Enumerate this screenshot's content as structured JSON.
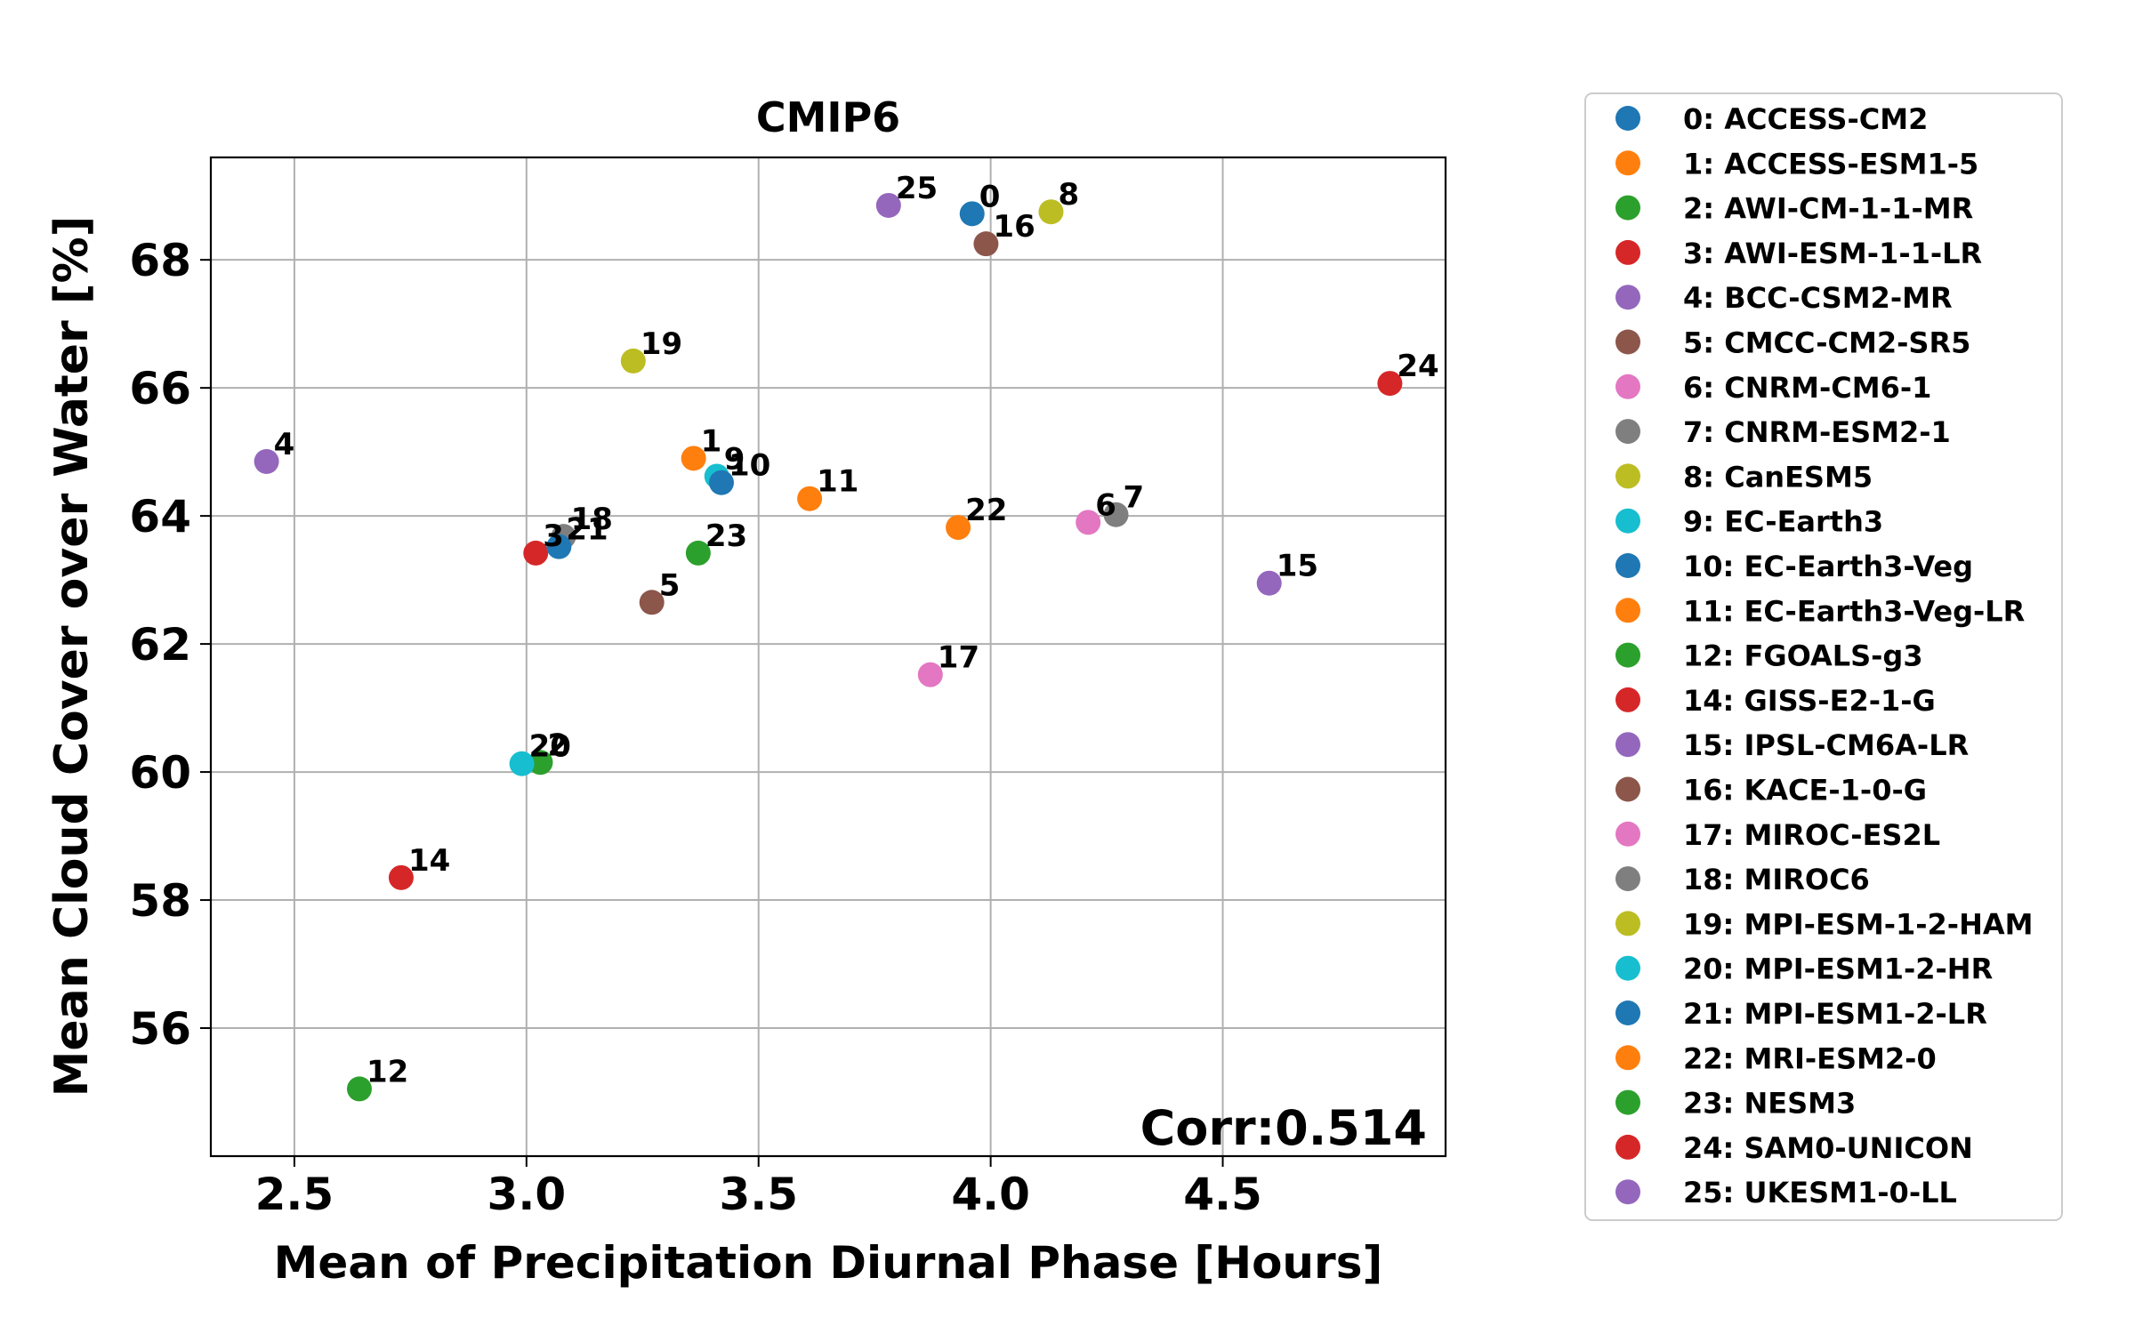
{
  "chart_data": {
    "type": "scatter",
    "title": "CMIP6",
    "xlabel": "Mean of Precipitation Diurnal Phase [Hours]",
    "ylabel": "Mean Cloud Cover over Water [%]",
    "xlim": [
      2.32,
      4.98
    ],
    "ylim": [
      54.0,
      69.6
    ],
    "xticks": [
      2.5,
      3.0,
      3.5,
      4.0,
      4.5
    ],
    "xtick_labels": [
      "2.5",
      "3.0",
      "3.5",
      "4.0",
      "4.5"
    ],
    "yticks": [
      56,
      58,
      60,
      62,
      64,
      66,
      68
    ],
    "ytick_labels": [
      "56",
      "58",
      "60",
      "62",
      "64",
      "66",
      "68"
    ],
    "grid": true,
    "legend_position": "outside-right",
    "annotation": "Corr:0.514",
    "points": [
      {
        "label": "0",
        "name": "0: ACCESS-CM2",
        "x": 3.96,
        "y": 68.72,
        "color": "#1f77b4"
      },
      {
        "label": "1",
        "name": "1: ACCESS-ESM1-5",
        "x": 3.36,
        "y": 64.9,
        "color": "#ff7f0e"
      },
      {
        "label": "2",
        "name": "2: AWI-CM-1-1-MR",
        "x": 3.03,
        "y": 60.15,
        "color": "#2ca02c"
      },
      {
        "label": "3",
        "name": "3: AWI-ESM-1-1-LR",
        "x": 3.02,
        "y": 63.42,
        "color": "#d62728"
      },
      {
        "label": "4",
        "name": "4: BCC-CSM2-MR",
        "x": 2.44,
        "y": 64.85,
        "color": "#9467bd"
      },
      {
        "label": "5",
        "name": "5: CMCC-CM2-SR5",
        "x": 3.27,
        "y": 62.65,
        "color": "#8c564b"
      },
      {
        "label": "6",
        "name": "6: CNRM-CM6-1",
        "x": 4.21,
        "y": 63.9,
        "color": "#e377c2"
      },
      {
        "label": "7",
        "name": "7: CNRM-ESM2-1",
        "x": 4.27,
        "y": 64.02,
        "color": "#7f7f7f"
      },
      {
        "label": "8",
        "name": "8: CanESM5",
        "x": 4.13,
        "y": 68.75,
        "color": "#bcbd22"
      },
      {
        "label": "9",
        "name": "9: EC-Earth3",
        "x": 3.41,
        "y": 64.62,
        "color": "#17becf"
      },
      {
        "label": "10",
        "name": "10: EC-Earth3-Veg",
        "x": 3.42,
        "y": 64.52,
        "color": "#1f77b4"
      },
      {
        "label": "11",
        "name": "11: EC-Earth3-Veg-LR",
        "x": 3.61,
        "y": 64.27,
        "color": "#ff7f0e"
      },
      {
        "label": "12",
        "name": "12: FGOALS-g3",
        "x": 2.64,
        "y": 55.05,
        "color": "#2ca02c"
      },
      {
        "label": "14",
        "name": "14: GISS-E2-1-G",
        "x": 2.73,
        "y": 58.35,
        "color": "#d62728"
      },
      {
        "label": "15",
        "name": "15: IPSL-CM6A-LR",
        "x": 4.6,
        "y": 62.95,
        "color": "#9467bd"
      },
      {
        "label": "16",
        "name": "16: KACE-1-0-G",
        "x": 3.99,
        "y": 68.25,
        "color": "#8c564b"
      },
      {
        "label": "17",
        "name": "17: MIROC-ES2L",
        "x": 3.87,
        "y": 61.52,
        "color": "#e377c2"
      },
      {
        "label": "18",
        "name": "18: MIROC6",
        "x": 3.08,
        "y": 63.68,
        "color": "#7f7f7f"
      },
      {
        "label": "19",
        "name": "19: MPI-ESM-1-2-HAM",
        "x": 3.23,
        "y": 66.42,
        "color": "#bcbd22"
      },
      {
        "label": "20",
        "name": "20: MPI-ESM1-2-HR",
        "x": 2.99,
        "y": 60.13,
        "color": "#17becf"
      },
      {
        "label": "21",
        "name": "21: MPI-ESM1-2-LR",
        "x": 3.07,
        "y": 63.52,
        "color": "#1f77b4"
      },
      {
        "label": "22",
        "name": "22: MRI-ESM2-0",
        "x": 3.93,
        "y": 63.82,
        "color": "#ff7f0e"
      },
      {
        "label": "23",
        "name": "23: NESM3",
        "x": 3.37,
        "y": 63.42,
        "color": "#2ca02c"
      },
      {
        "label": "24",
        "name": "24: SAM0-UNICON",
        "x": 4.86,
        "y": 66.07,
        "color": "#d62728"
      },
      {
        "label": "25",
        "name": "25: UKESM1-0-LL",
        "x": 3.78,
        "y": 68.85,
        "color": "#9467bd"
      }
    ]
  }
}
